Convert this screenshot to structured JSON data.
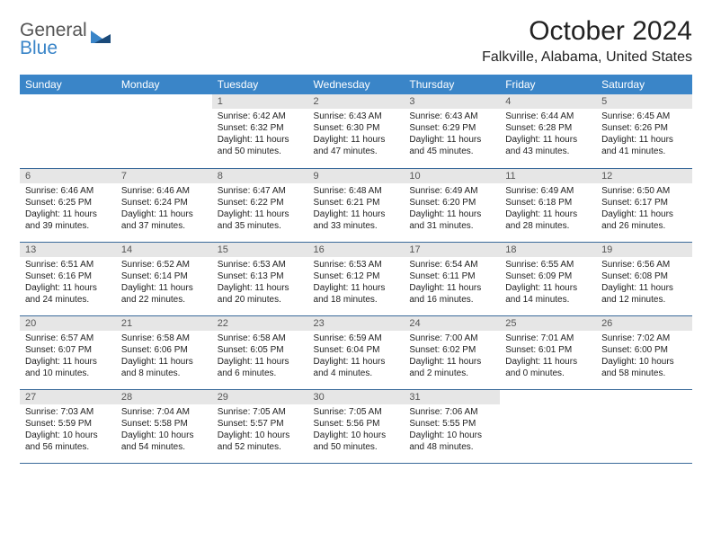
{
  "brand": {
    "part1": "General",
    "part2": "Blue"
  },
  "title": {
    "month": "October 2024",
    "location": "Falkville, Alabama, United States"
  },
  "dayHeaders": [
    "Sunday",
    "Monday",
    "Tuesday",
    "Wednesday",
    "Thursday",
    "Friday",
    "Saturday"
  ],
  "colors": {
    "header_bg": "#3a85c8",
    "header_text": "#ffffff",
    "daynum_bg": "#e6e6e6",
    "border": "#3a6a9a"
  },
  "weeks": [
    [
      {
        "n": "",
        "sr": "",
        "ss": "",
        "dl": ""
      },
      {
        "n": "",
        "sr": "",
        "ss": "",
        "dl": ""
      },
      {
        "n": "1",
        "sr": "Sunrise: 6:42 AM",
        "ss": "Sunset: 6:32 PM",
        "dl": "Daylight: 11 hours and 50 minutes."
      },
      {
        "n": "2",
        "sr": "Sunrise: 6:43 AM",
        "ss": "Sunset: 6:30 PM",
        "dl": "Daylight: 11 hours and 47 minutes."
      },
      {
        "n": "3",
        "sr": "Sunrise: 6:43 AM",
        "ss": "Sunset: 6:29 PM",
        "dl": "Daylight: 11 hours and 45 minutes."
      },
      {
        "n": "4",
        "sr": "Sunrise: 6:44 AM",
        "ss": "Sunset: 6:28 PM",
        "dl": "Daylight: 11 hours and 43 minutes."
      },
      {
        "n": "5",
        "sr": "Sunrise: 6:45 AM",
        "ss": "Sunset: 6:26 PM",
        "dl": "Daylight: 11 hours and 41 minutes."
      }
    ],
    [
      {
        "n": "6",
        "sr": "Sunrise: 6:46 AM",
        "ss": "Sunset: 6:25 PM",
        "dl": "Daylight: 11 hours and 39 minutes."
      },
      {
        "n": "7",
        "sr": "Sunrise: 6:46 AM",
        "ss": "Sunset: 6:24 PM",
        "dl": "Daylight: 11 hours and 37 minutes."
      },
      {
        "n": "8",
        "sr": "Sunrise: 6:47 AM",
        "ss": "Sunset: 6:22 PM",
        "dl": "Daylight: 11 hours and 35 minutes."
      },
      {
        "n": "9",
        "sr": "Sunrise: 6:48 AM",
        "ss": "Sunset: 6:21 PM",
        "dl": "Daylight: 11 hours and 33 minutes."
      },
      {
        "n": "10",
        "sr": "Sunrise: 6:49 AM",
        "ss": "Sunset: 6:20 PM",
        "dl": "Daylight: 11 hours and 31 minutes."
      },
      {
        "n": "11",
        "sr": "Sunrise: 6:49 AM",
        "ss": "Sunset: 6:18 PM",
        "dl": "Daylight: 11 hours and 28 minutes."
      },
      {
        "n": "12",
        "sr": "Sunrise: 6:50 AM",
        "ss": "Sunset: 6:17 PM",
        "dl": "Daylight: 11 hours and 26 minutes."
      }
    ],
    [
      {
        "n": "13",
        "sr": "Sunrise: 6:51 AM",
        "ss": "Sunset: 6:16 PM",
        "dl": "Daylight: 11 hours and 24 minutes."
      },
      {
        "n": "14",
        "sr": "Sunrise: 6:52 AM",
        "ss": "Sunset: 6:14 PM",
        "dl": "Daylight: 11 hours and 22 minutes."
      },
      {
        "n": "15",
        "sr": "Sunrise: 6:53 AM",
        "ss": "Sunset: 6:13 PM",
        "dl": "Daylight: 11 hours and 20 minutes."
      },
      {
        "n": "16",
        "sr": "Sunrise: 6:53 AM",
        "ss": "Sunset: 6:12 PM",
        "dl": "Daylight: 11 hours and 18 minutes."
      },
      {
        "n": "17",
        "sr": "Sunrise: 6:54 AM",
        "ss": "Sunset: 6:11 PM",
        "dl": "Daylight: 11 hours and 16 minutes."
      },
      {
        "n": "18",
        "sr": "Sunrise: 6:55 AM",
        "ss": "Sunset: 6:09 PM",
        "dl": "Daylight: 11 hours and 14 minutes."
      },
      {
        "n": "19",
        "sr": "Sunrise: 6:56 AM",
        "ss": "Sunset: 6:08 PM",
        "dl": "Daylight: 11 hours and 12 minutes."
      }
    ],
    [
      {
        "n": "20",
        "sr": "Sunrise: 6:57 AM",
        "ss": "Sunset: 6:07 PM",
        "dl": "Daylight: 11 hours and 10 minutes."
      },
      {
        "n": "21",
        "sr": "Sunrise: 6:58 AM",
        "ss": "Sunset: 6:06 PM",
        "dl": "Daylight: 11 hours and 8 minutes."
      },
      {
        "n": "22",
        "sr": "Sunrise: 6:58 AM",
        "ss": "Sunset: 6:05 PM",
        "dl": "Daylight: 11 hours and 6 minutes."
      },
      {
        "n": "23",
        "sr": "Sunrise: 6:59 AM",
        "ss": "Sunset: 6:04 PM",
        "dl": "Daylight: 11 hours and 4 minutes."
      },
      {
        "n": "24",
        "sr": "Sunrise: 7:00 AM",
        "ss": "Sunset: 6:02 PM",
        "dl": "Daylight: 11 hours and 2 minutes."
      },
      {
        "n": "25",
        "sr": "Sunrise: 7:01 AM",
        "ss": "Sunset: 6:01 PM",
        "dl": "Daylight: 11 hours and 0 minutes."
      },
      {
        "n": "26",
        "sr": "Sunrise: 7:02 AM",
        "ss": "Sunset: 6:00 PM",
        "dl": "Daylight: 10 hours and 58 minutes."
      }
    ],
    [
      {
        "n": "27",
        "sr": "Sunrise: 7:03 AM",
        "ss": "Sunset: 5:59 PM",
        "dl": "Daylight: 10 hours and 56 minutes."
      },
      {
        "n": "28",
        "sr": "Sunrise: 7:04 AM",
        "ss": "Sunset: 5:58 PM",
        "dl": "Daylight: 10 hours and 54 minutes."
      },
      {
        "n": "29",
        "sr": "Sunrise: 7:05 AM",
        "ss": "Sunset: 5:57 PM",
        "dl": "Daylight: 10 hours and 52 minutes."
      },
      {
        "n": "30",
        "sr": "Sunrise: 7:05 AM",
        "ss": "Sunset: 5:56 PM",
        "dl": "Daylight: 10 hours and 50 minutes."
      },
      {
        "n": "31",
        "sr": "Sunrise: 7:06 AM",
        "ss": "Sunset: 5:55 PM",
        "dl": "Daylight: 10 hours and 48 minutes."
      },
      {
        "n": "",
        "sr": "",
        "ss": "",
        "dl": ""
      },
      {
        "n": "",
        "sr": "",
        "ss": "",
        "dl": ""
      }
    ]
  ]
}
